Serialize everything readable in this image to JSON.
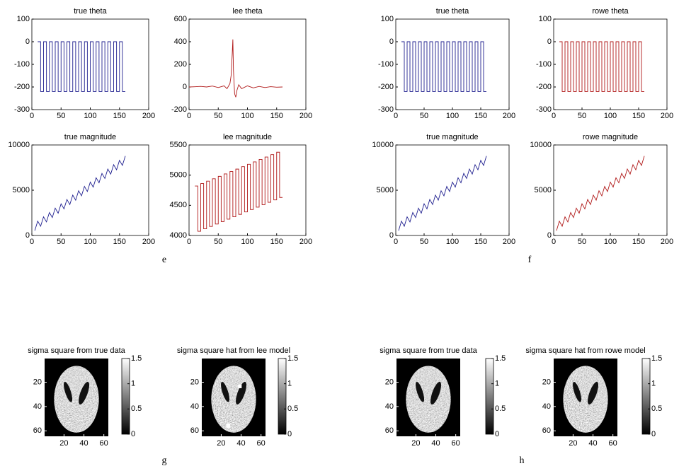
{
  "panel_labels": [
    "e",
    "f",
    "g",
    "h"
  ],
  "chart_data": [
    {
      "type": "line",
      "title": "true theta",
      "xlim": [
        0,
        200
      ],
      "xticks": [
        0,
        50,
        100,
        150,
        200
      ],
      "ylim": [
        -300,
        100
      ],
      "yticks": [
        -300,
        -200,
        -100,
        0,
        100
      ],
      "x": [
        10,
        15,
        15,
        20,
        20,
        25,
        25,
        30,
        30,
        35,
        35,
        40,
        40,
        45,
        45,
        50,
        50,
        55,
        55,
        60,
        60,
        65,
        65,
        70,
        70,
        75,
        75,
        80,
        80,
        85,
        85,
        90,
        90,
        95,
        95,
        100,
        100,
        105,
        105,
        110,
        110,
        115,
        115,
        120,
        120,
        125,
        125,
        130,
        130,
        135,
        135,
        140,
        140,
        145,
        145,
        150,
        150,
        155,
        155,
        160
      ],
      "series": [
        {
          "color": "#1f1f8f",
          "values": [
            0,
            0,
            -220,
            -220,
            0,
            0,
            -220,
            -220,
            0,
            0,
            -220,
            -220,
            0,
            0,
            -220,
            -220,
            0,
            0,
            -220,
            -220,
            0,
            0,
            -220,
            -220,
            0,
            0,
            -220,
            -220,
            0,
            0,
            -220,
            -220,
            0,
            0,
            -220,
            -220,
            0,
            0,
            -220,
            -220,
            0,
            0,
            -220,
            -220,
            0,
            0,
            -220,
            -220,
            0,
            0,
            -220,
            -220,
            0,
            0,
            -220,
            -220,
            0,
            0,
            -220,
            -220
          ]
        }
      ]
    },
    {
      "type": "line",
      "title": "lee theta",
      "xlim": [
        0,
        200
      ],
      "xticks": [
        0,
        50,
        100,
        150,
        200
      ],
      "ylim": [
        -200,
        600
      ],
      "yticks": [
        -200,
        0,
        200,
        400,
        600
      ],
      "x": [
        0,
        10,
        20,
        30,
        40,
        50,
        60,
        65,
        70,
        72,
        74,
        75,
        76,
        78,
        80,
        82,
        85,
        90,
        100,
        110,
        120,
        130,
        140,
        150,
        160
      ],
      "series": [
        {
          "color": "#b01818",
          "values": [
            0,
            2,
            5,
            0,
            8,
            -5,
            10,
            -15,
            30,
            100,
            300,
            420,
            150,
            -60,
            -90,
            -30,
            20,
            -15,
            10,
            -8,
            5,
            -5,
            3,
            -2,
            0
          ]
        }
      ]
    },
    {
      "type": "line",
      "title": "true magnitude",
      "xlim": [
        0,
        200
      ],
      "xticks": [
        0,
        50,
        100,
        150,
        200
      ],
      "ylim": [
        0,
        10000
      ],
      "yticks": [
        0,
        5000,
        10000
      ],
      "x": [
        5,
        10,
        15,
        20,
        25,
        30,
        35,
        40,
        45,
        50,
        55,
        60,
        65,
        70,
        75,
        80,
        85,
        90,
        95,
        100,
        105,
        110,
        115,
        120,
        125,
        130,
        135,
        140,
        145,
        150,
        155,
        160
      ],
      "series": [
        {
          "color": "#1f1f8f",
          "values": [
            540,
            1580,
            1020,
            2060,
            1500,
            2540,
            1980,
            3020,
            2460,
            3500,
            2940,
            3980,
            3420,
            4460,
            3900,
            4940,
            4380,
            5420,
            4860,
            5900,
            5340,
            6380,
            5820,
            6860,
            6300,
            7340,
            6780,
            7820,
            7260,
            8300,
            7740,
            8780
          ]
        }
      ]
    },
    {
      "type": "line",
      "title": "lee magnitude",
      "xlim": [
        0,
        200
      ],
      "xticks": [
        0,
        50,
        100,
        150,
        200
      ],
      "ylim": [
        4000,
        5500
      ],
      "yticks": [
        4000,
        4500,
        5000,
        5500
      ],
      "x": [
        10,
        15,
        15,
        20,
        20,
        25,
        25,
        30,
        30,
        35,
        35,
        40,
        40,
        45,
        45,
        50,
        50,
        55,
        55,
        60,
        60,
        65,
        65,
        70,
        70,
        75,
        75,
        80,
        80,
        85,
        85,
        90,
        90,
        95,
        95,
        100,
        100,
        105,
        105,
        110,
        110,
        115,
        115,
        120,
        120,
        125,
        125,
        130,
        130,
        135,
        135,
        140,
        140,
        145,
        145,
        150,
        150,
        155,
        155,
        160
      ],
      "series": [
        {
          "color": "#b01818",
          "values": [
            4820,
            4820,
            4070,
            4070,
            4860,
            4860,
            4110,
            4110,
            4900,
            4900,
            4150,
            4150,
            4940,
            4940,
            4190,
            4190,
            4980,
            4980,
            4230,
            4230,
            5020,
            5020,
            4270,
            4270,
            5060,
            5060,
            4310,
            4310,
            5100,
            5100,
            4350,
            4350,
            5140,
            5140,
            4390,
            4390,
            5180,
            5180,
            4430,
            4430,
            5220,
            5220,
            4470,
            4470,
            5260,
            5260,
            4510,
            4510,
            5300,
            5300,
            4550,
            4550,
            5340,
            5340,
            4590,
            4590,
            5380,
            5380,
            4630,
            4630
          ]
        }
      ]
    },
    {
      "type": "line",
      "title": "true theta",
      "xlim": [
        0,
        200
      ],
      "xticks": [
        0,
        50,
        100,
        150,
        200
      ],
      "ylim": [
        -300,
        100
      ],
      "yticks": [
        -300,
        -200,
        -100,
        0,
        100
      ],
      "x": [
        10,
        15,
        15,
        20,
        20,
        25,
        25,
        30,
        30,
        35,
        35,
        40,
        40,
        45,
        45,
        50,
        50,
        55,
        55,
        60,
        60,
        65,
        65,
        70,
        70,
        75,
        75,
        80,
        80,
        85,
        85,
        90,
        90,
        95,
        95,
        100,
        100,
        105,
        105,
        110,
        110,
        115,
        115,
        120,
        120,
        125,
        125,
        130,
        130,
        135,
        135,
        140,
        140,
        145,
        145,
        150,
        150,
        155,
        155,
        160
      ],
      "series": [
        {
          "color": "#1f1f8f",
          "values": [
            0,
            0,
            -220,
            -220,
            0,
            0,
            -220,
            -220,
            0,
            0,
            -220,
            -220,
            0,
            0,
            -220,
            -220,
            0,
            0,
            -220,
            -220,
            0,
            0,
            -220,
            -220,
            0,
            0,
            -220,
            -220,
            0,
            0,
            -220,
            -220,
            0,
            0,
            -220,
            -220,
            0,
            0,
            -220,
            -220,
            0,
            0,
            -220,
            -220,
            0,
            0,
            -220,
            -220,
            0,
            0,
            -220,
            -220,
            0,
            0,
            -220,
            -220,
            0,
            0,
            -220,
            -220
          ]
        }
      ]
    },
    {
      "type": "line",
      "title": "rowe theta",
      "xlim": [
        0,
        200
      ],
      "xticks": [
        0,
        50,
        100,
        150,
        200
      ],
      "ylim": [
        -300,
        100
      ],
      "yticks": [
        -300,
        -200,
        -100,
        0,
        100
      ],
      "x": [
        10,
        15,
        15,
        20,
        20,
        25,
        25,
        30,
        30,
        35,
        35,
        40,
        40,
        45,
        45,
        50,
        50,
        55,
        55,
        60,
        60,
        65,
        65,
        70,
        70,
        75,
        75,
        80,
        80,
        85,
        85,
        90,
        90,
        95,
        95,
        100,
        100,
        105,
        105,
        110,
        110,
        115,
        115,
        120,
        120,
        125,
        125,
        130,
        130,
        135,
        135,
        140,
        140,
        145,
        145,
        150,
        150,
        155,
        155,
        160
      ],
      "series": [
        {
          "color": "#b01818",
          "values": [
            0,
            0,
            -220,
            -220,
            0,
            0,
            -220,
            -220,
            0,
            0,
            -220,
            -220,
            0,
            0,
            -220,
            -220,
            0,
            0,
            -220,
            -220,
            0,
            0,
            -220,
            -220,
            0,
            0,
            -220,
            -220,
            0,
            0,
            -220,
            -220,
            0,
            0,
            -220,
            -220,
            0,
            0,
            -220,
            -220,
            0,
            0,
            -220,
            -220,
            0,
            0,
            -220,
            -220,
            0,
            0,
            -220,
            -220,
            0,
            0,
            -220,
            -220,
            0,
            0,
            -220,
            -220
          ]
        }
      ]
    },
    {
      "type": "line",
      "title": "true magnitude",
      "xlim": [
        0,
        200
      ],
      "xticks": [
        0,
        50,
        100,
        150,
        200
      ],
      "ylim": [
        0,
        10000
      ],
      "yticks": [
        0,
        5000,
        10000
      ],
      "x": [
        5,
        10,
        15,
        20,
        25,
        30,
        35,
        40,
        45,
        50,
        55,
        60,
        65,
        70,
        75,
        80,
        85,
        90,
        95,
        100,
        105,
        110,
        115,
        120,
        125,
        130,
        135,
        140,
        145,
        150,
        155,
        160
      ],
      "series": [
        {
          "color": "#1f1f8f",
          "values": [
            540,
            1580,
            1020,
            2060,
            1500,
            2540,
            1980,
            3020,
            2460,
            3500,
            2940,
            3980,
            3420,
            4460,
            3900,
            4940,
            4380,
            5420,
            4860,
            5900,
            5340,
            6380,
            5820,
            6860,
            6300,
            7340,
            6780,
            7820,
            7260,
            8300,
            7740,
            8780
          ]
        }
      ]
    },
    {
      "type": "line",
      "title": "rowe magnitude",
      "xlim": [
        0,
        200
      ],
      "xticks": [
        0,
        50,
        100,
        150,
        200
      ],
      "ylim": [
        0,
        10000
      ],
      "yticks": [
        0,
        5000,
        10000
      ],
      "x": [
        5,
        10,
        15,
        20,
        25,
        30,
        35,
        40,
        45,
        50,
        55,
        60,
        65,
        70,
        75,
        80,
        85,
        90,
        95,
        100,
        105,
        110,
        115,
        120,
        125,
        130,
        135,
        140,
        145,
        150,
        155,
        160
      ],
      "series": [
        {
          "color": "#b01818",
          "values": [
            540,
            1580,
            1020,
            2060,
            1500,
            2540,
            1980,
            3020,
            2460,
            3500,
            2940,
            3980,
            3420,
            4460,
            3900,
            4940,
            4380,
            5420,
            4860,
            5900,
            5340,
            6380,
            5820,
            6860,
            6300,
            7340,
            6780,
            7820,
            7260,
            8300,
            7740,
            8780
          ]
        }
      ]
    },
    {
      "type": "image",
      "title": "sigma square from true data",
      "xlim": [
        0.5,
        64.5
      ],
      "xticks": [
        20,
        40,
        60
      ],
      "ylim": [
        64.5,
        0.5
      ],
      "yticks": [
        20,
        40,
        60
      ],
      "clim": [
        0,
        1.5
      ],
      "cticks": [
        0,
        0.5,
        1,
        1.5
      ]
    },
    {
      "type": "image",
      "title": "sigma square hat from lee model",
      "xlim": [
        0.5,
        64.5
      ],
      "xticks": [
        20,
        40,
        60
      ],
      "ylim": [
        64.5,
        0.5
      ],
      "yticks": [
        20,
        40,
        60
      ],
      "clim": [
        0,
        1.5
      ],
      "cticks": [
        0,
        0.5,
        1,
        1.5
      ]
    },
    {
      "type": "image",
      "title": "sigma square from true data",
      "xlim": [
        0.5,
        64.5
      ],
      "xticks": [
        20,
        40,
        60
      ],
      "ylim": [
        64.5,
        0.5
      ],
      "yticks": [
        20,
        40,
        60
      ],
      "clim": [
        0,
        1.5
      ],
      "cticks": [
        0,
        0.5,
        1,
        1.5
      ]
    },
    {
      "type": "image",
      "title": "sigma square hat from rowe model",
      "xlim": [
        0.5,
        64.5
      ],
      "xticks": [
        20,
        40,
        60
      ],
      "ylim": [
        64.5,
        0.5
      ],
      "yticks": [
        20,
        40,
        60
      ],
      "clim": [
        0,
        1.5
      ],
      "cticks": [
        0,
        0.5,
        1,
        1.5
      ]
    }
  ]
}
